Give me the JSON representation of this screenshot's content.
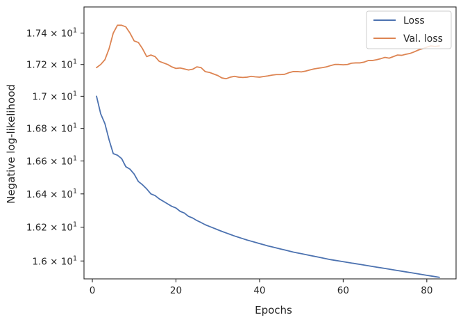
{
  "chart_data": {
    "type": "line",
    "title": "",
    "xlabel": "Epochs",
    "ylabel": "Negative log-likelihood",
    "xlim": [
      -2,
      87
    ],
    "ylim": [
      15.895,
      17.568
    ],
    "x_ticks": [
      0,
      20,
      40,
      60,
      80
    ],
    "y_ticks": [
      {
        "value": 16.0,
        "mantissa": "1.6",
        "exp": "1"
      },
      {
        "value": 16.2,
        "mantissa": "1.62",
        "exp": "1"
      },
      {
        "value": 16.4,
        "mantissa": "1.64",
        "exp": "1"
      },
      {
        "value": 16.6,
        "mantissa": "1.66",
        "exp": "1"
      },
      {
        "value": 16.8,
        "mantissa": "1.68",
        "exp": "1"
      },
      {
        "value": 17.0,
        "mantissa": "1.7",
        "exp": "1"
      },
      {
        "value": 17.2,
        "mantissa": "1.72",
        "exp": "1"
      },
      {
        "value": 17.4,
        "mantissa": "1.74",
        "exp": "1"
      }
    ],
    "y_scale": "log",
    "legend_position": "top-right",
    "grid": false,
    "x": [
      1,
      2,
      3,
      4,
      5,
      6,
      7,
      8,
      9,
      10,
      11,
      12,
      13,
      14,
      15,
      16,
      17,
      18,
      19,
      20,
      21,
      22,
      23,
      24,
      25,
      26,
      27,
      28,
      29,
      30,
      31,
      32,
      33,
      34,
      35,
      36,
      37,
      38,
      39,
      40,
      41,
      42,
      43,
      44,
      45,
      46,
      47,
      48,
      49,
      50,
      51,
      52,
      53,
      54,
      55,
      56,
      57,
      58,
      59,
      60,
      61,
      62,
      63,
      64,
      65,
      66,
      67,
      68,
      69,
      70,
      71,
      72,
      73,
      74,
      75,
      76,
      77,
      78,
      79,
      80,
      81,
      82,
      83
    ],
    "series": [
      {
        "name": "Loss",
        "color": "#4c72b0",
        "values": [
          17.0,
          16.89,
          16.83,
          16.73,
          16.645,
          16.635,
          16.615,
          16.565,
          16.55,
          16.52,
          16.475,
          16.455,
          16.43,
          16.4,
          16.39,
          16.37,
          16.355,
          16.34,
          16.325,
          16.315,
          16.295,
          16.285,
          16.265,
          16.255,
          16.24,
          16.228,
          16.215,
          16.205,
          16.195,
          16.185,
          16.175,
          16.166,
          16.157,
          16.148,
          16.14,
          16.132,
          16.124,
          16.117,
          16.11,
          16.103,
          16.096,
          16.089,
          16.083,
          16.077,
          16.071,
          16.065,
          16.059,
          16.053,
          16.048,
          16.043,
          16.038,
          16.033,
          16.028,
          16.023,
          16.018,
          16.013,
          16.008,
          16.004,
          16.0,
          15.996,
          15.992,
          15.988,
          15.984,
          15.98,
          15.976,
          15.972,
          15.968,
          15.964,
          15.96,
          15.956,
          15.952,
          15.948,
          15.944,
          15.94,
          15.936,
          15.932,
          15.928,
          15.924,
          15.92,
          15.916,
          15.912,
          15.908,
          15.904
        ]
      },
      {
        "name": "Val. loss",
        "color": "#dd8452",
        "values": [
          17.18,
          17.2,
          17.23,
          17.3,
          17.4,
          17.45,
          17.45,
          17.44,
          17.4,
          17.35,
          17.34,
          17.3,
          17.25,
          17.26,
          17.25,
          17.22,
          17.21,
          17.2,
          17.185,
          17.175,
          17.178,
          17.172,
          17.165,
          17.17,
          17.185,
          17.18,
          17.155,
          17.15,
          17.14,
          17.13,
          17.115,
          17.11,
          17.12,
          17.125,
          17.12,
          17.118,
          17.12,
          17.125,
          17.122,
          17.12,
          17.124,
          17.128,
          17.133,
          17.136,
          17.136,
          17.138,
          17.148,
          17.155,
          17.155,
          17.153,
          17.158,
          17.165,
          17.172,
          17.176,
          17.18,
          17.185,
          17.193,
          17.2,
          17.2,
          17.198,
          17.2,
          17.208,
          17.21,
          17.21,
          17.215,
          17.225,
          17.225,
          17.23,
          17.237,
          17.245,
          17.24,
          17.25,
          17.26,
          17.258,
          17.265,
          17.27,
          17.28,
          17.292,
          17.3,
          17.31,
          17.318,
          17.314,
          17.318
        ]
      }
    ]
  }
}
